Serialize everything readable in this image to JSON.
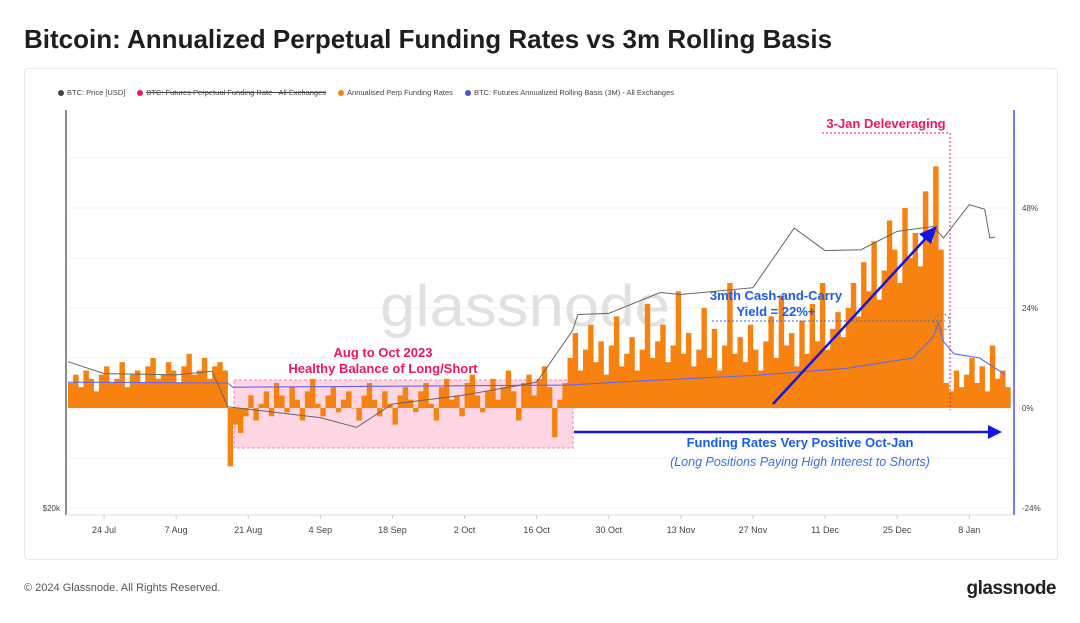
{
  "title": "Bitcoin: Annualized Perpetual Funding Rates vs 3m Rolling Basis",
  "footer": "© 2024 Glassnode. All Rights Reserved.",
  "logo": "glassnode",
  "watermark": "glassnode",
  "colors": {
    "price": "#555555",
    "perp_funding_legacy": "#f0166b",
    "funding": "#f7820f",
    "basis": "#5a5ef0",
    "annotation_red": "#f0165e",
    "annotation_blue": "#1414e6",
    "shade": "#ffd6e4"
  },
  "legend": [
    {
      "label": "BTC: Price [USD]",
      "color": "#444444",
      "struck": false
    },
    {
      "label": "BTC: Futures Perpetual Funding Rate - All Exchanges",
      "color": "#f0166b",
      "struck": true
    },
    {
      "label": "Annualised Perp Funding Rates",
      "color": "#f7820f",
      "struck": false
    },
    {
      "label": "BTC: Futures Annualized Rolling Basis (3M) - All Exchanges",
      "color": "#4a4ef0",
      "struck": false
    }
  ],
  "chart_data": {
    "type": "bar+line",
    "x_start": "2023-07-17",
    "x_end": "2024-01-15",
    "x_ticks": [
      "24 Jul",
      "7 Aug",
      "21 Aug",
      "4 Sep",
      "18 Sep",
      "2 Oct",
      "16 Oct",
      "30 Oct",
      "13 Nov",
      "27 Nov",
      "11 Dec",
      "25 Dec",
      "8 Jan"
    ],
    "x_tick_dates": [
      "2023-07-24",
      "2023-08-07",
      "2023-08-21",
      "2023-09-04",
      "2023-09-18",
      "2023-10-02",
      "2023-10-16",
      "2023-10-30",
      "2023-11-13",
      "2023-11-27",
      "2023-12-11",
      "2023-12-25",
      "2024-01-08"
    ],
    "y_left": {
      "scale": "log",
      "ticks": [
        "$20k"
      ],
      "min": 20000
    },
    "y_right": {
      "ticks": [
        "48%",
        "24%",
        "0%",
        "-24%"
      ],
      "tick_values": [
        48,
        24,
        0,
        -24
      ],
      "range": [
        -24,
        72
      ]
    },
    "grid": true,
    "legend_placement": "top-left",
    "series": [
      {
        "name": "Annualised Perp Funding Rates",
        "kind": "bar",
        "unit": "%",
        "daily_from": "2023-07-17",
        "values": [
          6,
          8,
          5,
          9,
          7,
          4,
          8,
          10,
          6,
          7,
          11,
          5,
          8,
          9,
          6,
          10,
          12,
          7,
          8,
          11,
          9,
          6,
          10,
          13,
          8,
          9,
          12,
          7,
          10,
          11,
          9,
          -14,
          -4,
          -6,
          -2,
          3,
          -3,
          1,
          4,
          -2,
          6,
          3,
          -1,
          5,
          2,
          -3,
          4,
          7,
          1,
          -2,
          3,
          5,
          -1,
          2,
          4,
          0,
          -3,
          3,
          6,
          2,
          -2,
          4,
          1,
          -4,
          3,
          5,
          2,
          -1,
          4,
          6,
          1,
          -3,
          5,
          7,
          2,
          3,
          -2,
          6,
          8,
          3,
          -1,
          4,
          7,
          2,
          5,
          9,
          4,
          -3,
          6,
          8,
          3,
          7,
          10,
          5,
          -7,
          2,
          6,
          12,
          18,
          9,
          14,
          20,
          11,
          16,
          8,
          15,
          22,
          10,
          13,
          17,
          9,
          14,
          25,
          12,
          16,
          20,
          11,
          15,
          28,
          13,
          18,
          10,
          14,
          24,
          12,
          19,
          9,
          15,
          30,
          13,
          17,
          11,
          20,
          14,
          9,
          16,
          22,
          12,
          27,
          15,
          18,
          10,
          21,
          13,
          25,
          16,
          30,
          14,
          19,
          23,
          17,
          24,
          30,
          22,
          35,
          28,
          40,
          26,
          33,
          45,
          38,
          30,
          48,
          36,
          42,
          34,
          52,
          40,
          58,
          38,
          6,
          4,
          9,
          5,
          8,
          12,
          6,
          10,
          4,
          15,
          7,
          9,
          5
        ]
      },
      {
        "name": "BTC: Futures Annualized Rolling Basis (3M) - All Exchanges",
        "kind": "line",
        "unit": "%",
        "points": [
          [
            "2023-07-17",
            6.2
          ],
          [
            "2023-08-17",
            6.0
          ],
          [
            "2023-08-18",
            5.0
          ],
          [
            "2023-09-15",
            5.2
          ],
          [
            "2023-10-22",
            5.5
          ],
          [
            "2023-11-05",
            6.5
          ],
          [
            "2023-11-27",
            7.8
          ],
          [
            "2023-12-15",
            9.5
          ],
          [
            "2023-12-28",
            12
          ],
          [
            "2024-01-01",
            17
          ],
          [
            "2024-01-02",
            20.5
          ],
          [
            "2024-01-03",
            16
          ],
          [
            "2024-01-05",
            13
          ],
          [
            "2024-01-10",
            12
          ],
          [
            "2024-01-15",
            8
          ]
        ]
      },
      {
        "name": "BTC: Price [USD]",
        "kind": "line",
        "unit": "USD",
        "points": [
          [
            "2023-07-17",
            30200
          ],
          [
            "2023-07-24",
            29200
          ],
          [
            "2023-08-07",
            29100
          ],
          [
            "2023-08-14",
            29400
          ],
          [
            "2023-08-17",
            26600
          ],
          [
            "2023-09-04",
            25800
          ],
          [
            "2023-09-11",
            25100
          ],
          [
            "2023-09-18",
            26800
          ],
          [
            "2023-10-02",
            27500
          ],
          [
            "2023-10-16",
            28500
          ],
          [
            "2023-10-23",
            33000
          ],
          [
            "2023-10-24",
            34500
          ],
          [
            "2023-10-30",
            34600
          ],
          [
            "2023-11-09",
            36700
          ],
          [
            "2023-11-13",
            36500
          ],
          [
            "2023-11-27",
            37200
          ],
          [
            "2023-12-05",
            44000
          ],
          [
            "2023-12-11",
            41300
          ],
          [
            "2023-12-18",
            41400
          ],
          [
            "2023-12-25",
            43600
          ],
          [
            "2024-01-01",
            44200
          ],
          [
            "2024-01-03",
            42800
          ],
          [
            "2024-01-08",
            47000
          ],
          [
            "2024-01-11",
            46400
          ],
          [
            "2024-01-12",
            42800
          ],
          [
            "2024-01-13",
            42900
          ]
        ]
      }
    ],
    "annotations": {
      "deleveraging": "3-Jan Deleveraging",
      "balance_line1": "Aug to Oct 2023",
      "balance_line2": "Healthy Balance of Long/Short",
      "yield_line1": "3mth Cash-and-Carry",
      "yield_line2": "Yield = 22%+",
      "positive_line1": "Funding Rates Very Positive Oct-Jan",
      "positive_line2": "(Long Positions Paying High Interest to Shorts)"
    }
  }
}
